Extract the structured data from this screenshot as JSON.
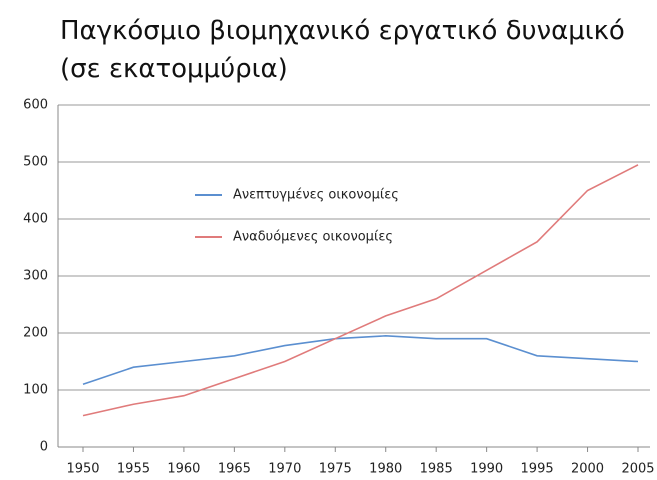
{
  "chart_data": {
    "type": "line",
    "title": "Παγκόσμιο βιομηχανικό εργατικό δυναμικό (σε εκατομμύρια)",
    "categories": [
      "1950",
      "1955",
      "1960",
      "1965",
      "1970",
      "1975",
      "1980",
      "1985",
      "1990",
      "1995",
      "2000",
      "2005"
    ],
    "series": [
      {
        "name": "Ανεπτυγμένες οικονομίες",
        "color": "#5b8fd0",
        "values": [
          110,
          140,
          150,
          160,
          178,
          190,
          195,
          190,
          190,
          160,
          155,
          150
        ]
      },
      {
        "name": "Αναδυόμενες οικονομίες",
        "color": "#e07b7b",
        "values": [
          55,
          75,
          90,
          120,
          150,
          190,
          230,
          260,
          310,
          360,
          450,
          495
        ]
      }
    ],
    "ylim": [
      0,
      600
    ],
    "yticks": [
      0,
      100,
      200,
      300,
      400,
      500,
      600
    ],
    "grid": true
  }
}
